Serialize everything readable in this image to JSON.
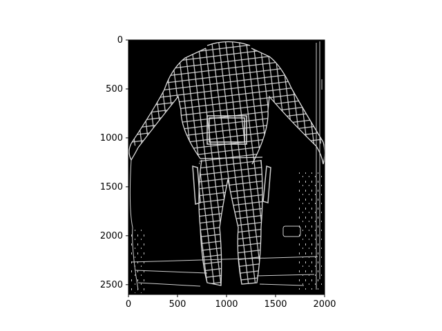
{
  "figure": {
    "type": "image-display",
    "description_free": true,
    "x_axis": {
      "min": 0,
      "max": 2000,
      "ticks": [
        {
          "value": 0,
          "label": "0"
        },
        {
          "value": 500,
          "label": "500"
        },
        {
          "value": 1000,
          "label": "1000"
        },
        {
          "value": 1500,
          "label": "1500"
        },
        {
          "value": 2000,
          "label": "2000"
        }
      ]
    },
    "y_axis": {
      "min": 0,
      "max": 2600,
      "inverted": true,
      "ticks": [
        {
          "value": 0,
          "label": "0"
        },
        {
          "value": 500,
          "label": "500"
        },
        {
          "value": 1000,
          "label": "1000"
        },
        {
          "value": 1500,
          "label": "1500"
        },
        {
          "value": 2000,
          "label": "2000"
        },
        {
          "value": 2500,
          "label": "2500"
        }
      ]
    },
    "colors": {
      "background": "#000000",
      "edges": "#d8d8d8",
      "page": "#ffffff",
      "axis": "#000000"
    }
  }
}
